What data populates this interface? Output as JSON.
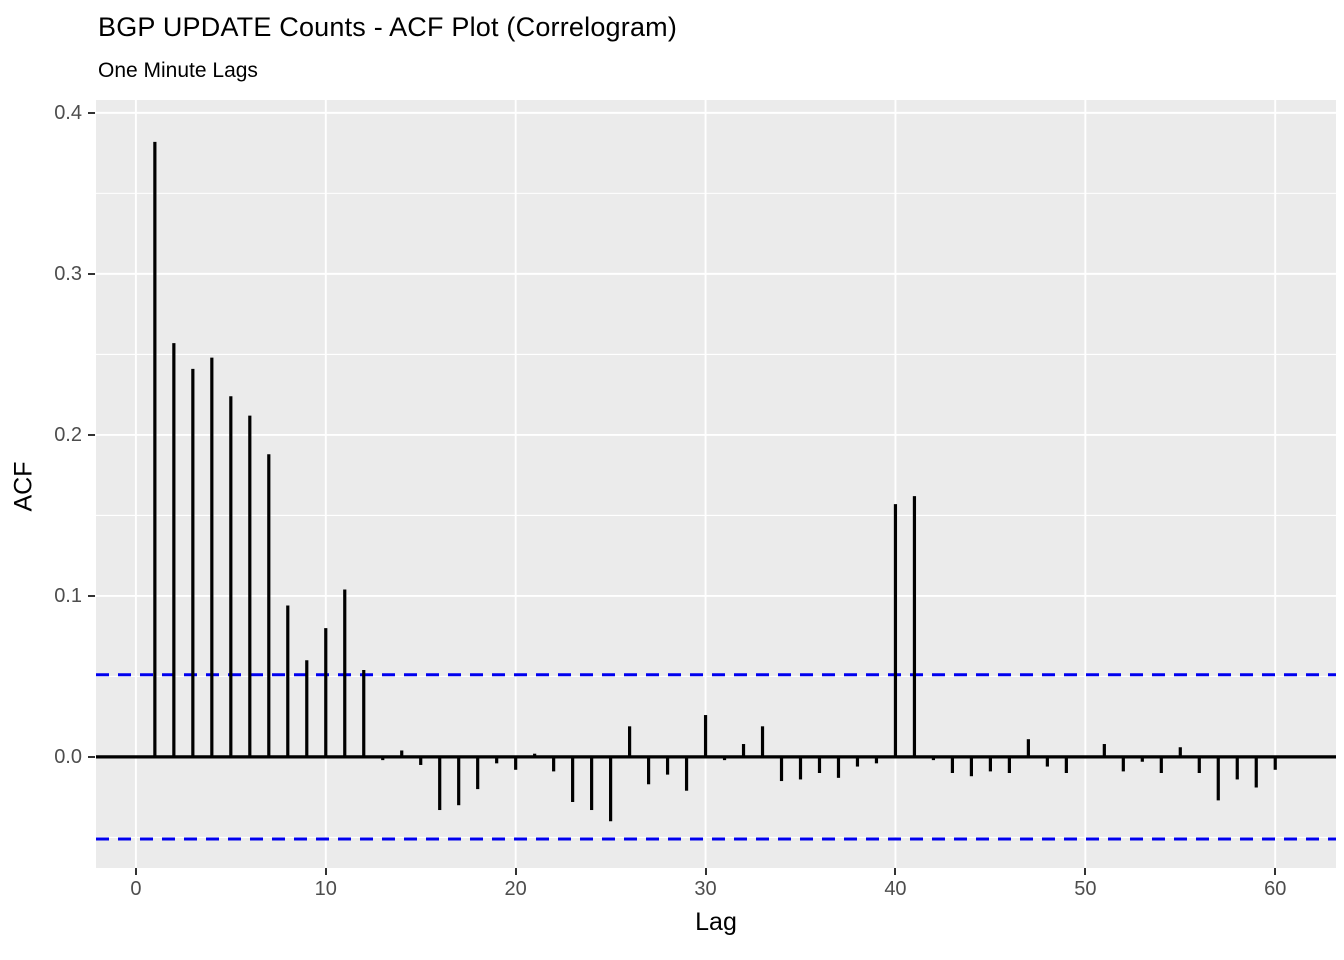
{
  "title": "BGP UPDATE Counts - ACF Plot (Correlogram)",
  "subtitle": "One Minute Lags",
  "chart_data": {
    "type": "bar",
    "subtype": "acf-correlogram",
    "title": "BGP UPDATE Counts - ACF Plot (Correlogram)",
    "subtitle": "One Minute Lags",
    "xlabel": "Lag",
    "ylabel": "ACF",
    "x": [
      1,
      2,
      3,
      4,
      5,
      6,
      7,
      8,
      9,
      10,
      11,
      12,
      13,
      14,
      15,
      16,
      17,
      18,
      19,
      20,
      21,
      22,
      23,
      24,
      25,
      26,
      27,
      28,
      29,
      30,
      31,
      32,
      33,
      34,
      35,
      36,
      37,
      38,
      39,
      40,
      41,
      42,
      43,
      44,
      45,
      46,
      47,
      48,
      49,
      50,
      51,
      52,
      53,
      54,
      55,
      56,
      57,
      58,
      59,
      60
    ],
    "values": [
      0.382,
      0.257,
      0.241,
      0.248,
      0.224,
      0.212,
      0.188,
      0.094,
      0.06,
      0.08,
      0.104,
      0.054,
      -0.002,
      0.004,
      -0.005,
      -0.033,
      -0.03,
      -0.02,
      -0.004,
      -0.008,
      0.002,
      -0.009,
      -0.028,
      -0.033,
      -0.04,
      0.019,
      -0.017,
      -0.011,
      -0.021,
      0.026,
      -0.002,
      0.008,
      0.019,
      -0.015,
      -0.014,
      -0.01,
      -0.013,
      -0.006,
      -0.004,
      0.157,
      0.162,
      -0.002,
      -0.01,
      -0.012,
      -0.009,
      -0.01,
      0.011,
      -0.006,
      -0.01,
      -0.001,
      0.008,
      -0.009,
      -0.003,
      -0.01,
      0.006,
      -0.01,
      -0.027,
      -0.014,
      -0.019,
      -0.008
    ],
    "confidence_bounds": [
      -0.051,
      0.051
    ],
    "zero_line": 0.0,
    "x_ticks": [
      0,
      10,
      20,
      30,
      40,
      50,
      60
    ],
    "y_ticks": [
      "0.0",
      "0.1",
      "0.2",
      "0.3",
      "0.4"
    ],
    "y_tick_values": [
      0.0,
      0.1,
      0.2,
      0.3,
      0.4
    ],
    "y_minor_gridlines": [
      -0.05,
      0.05,
      0.15,
      0.25,
      0.35
    ],
    "xlim": [
      -2.1,
      63.2
    ],
    "ylim": [
      -0.069,
      0.408
    ],
    "grid": "white major gridlines on gray panel; horizontal minor gridlines; no vertical minors",
    "legend": "none",
    "colors": {
      "bar": "#000000",
      "zero_line": "#000000",
      "confidence_line": "#0000EE",
      "panel_background": "#EBEBEB",
      "gridline": "#FFFFFF",
      "tick_label": "#4D4D4D",
      "tick_mark": "#333333",
      "text": "#000000"
    }
  }
}
